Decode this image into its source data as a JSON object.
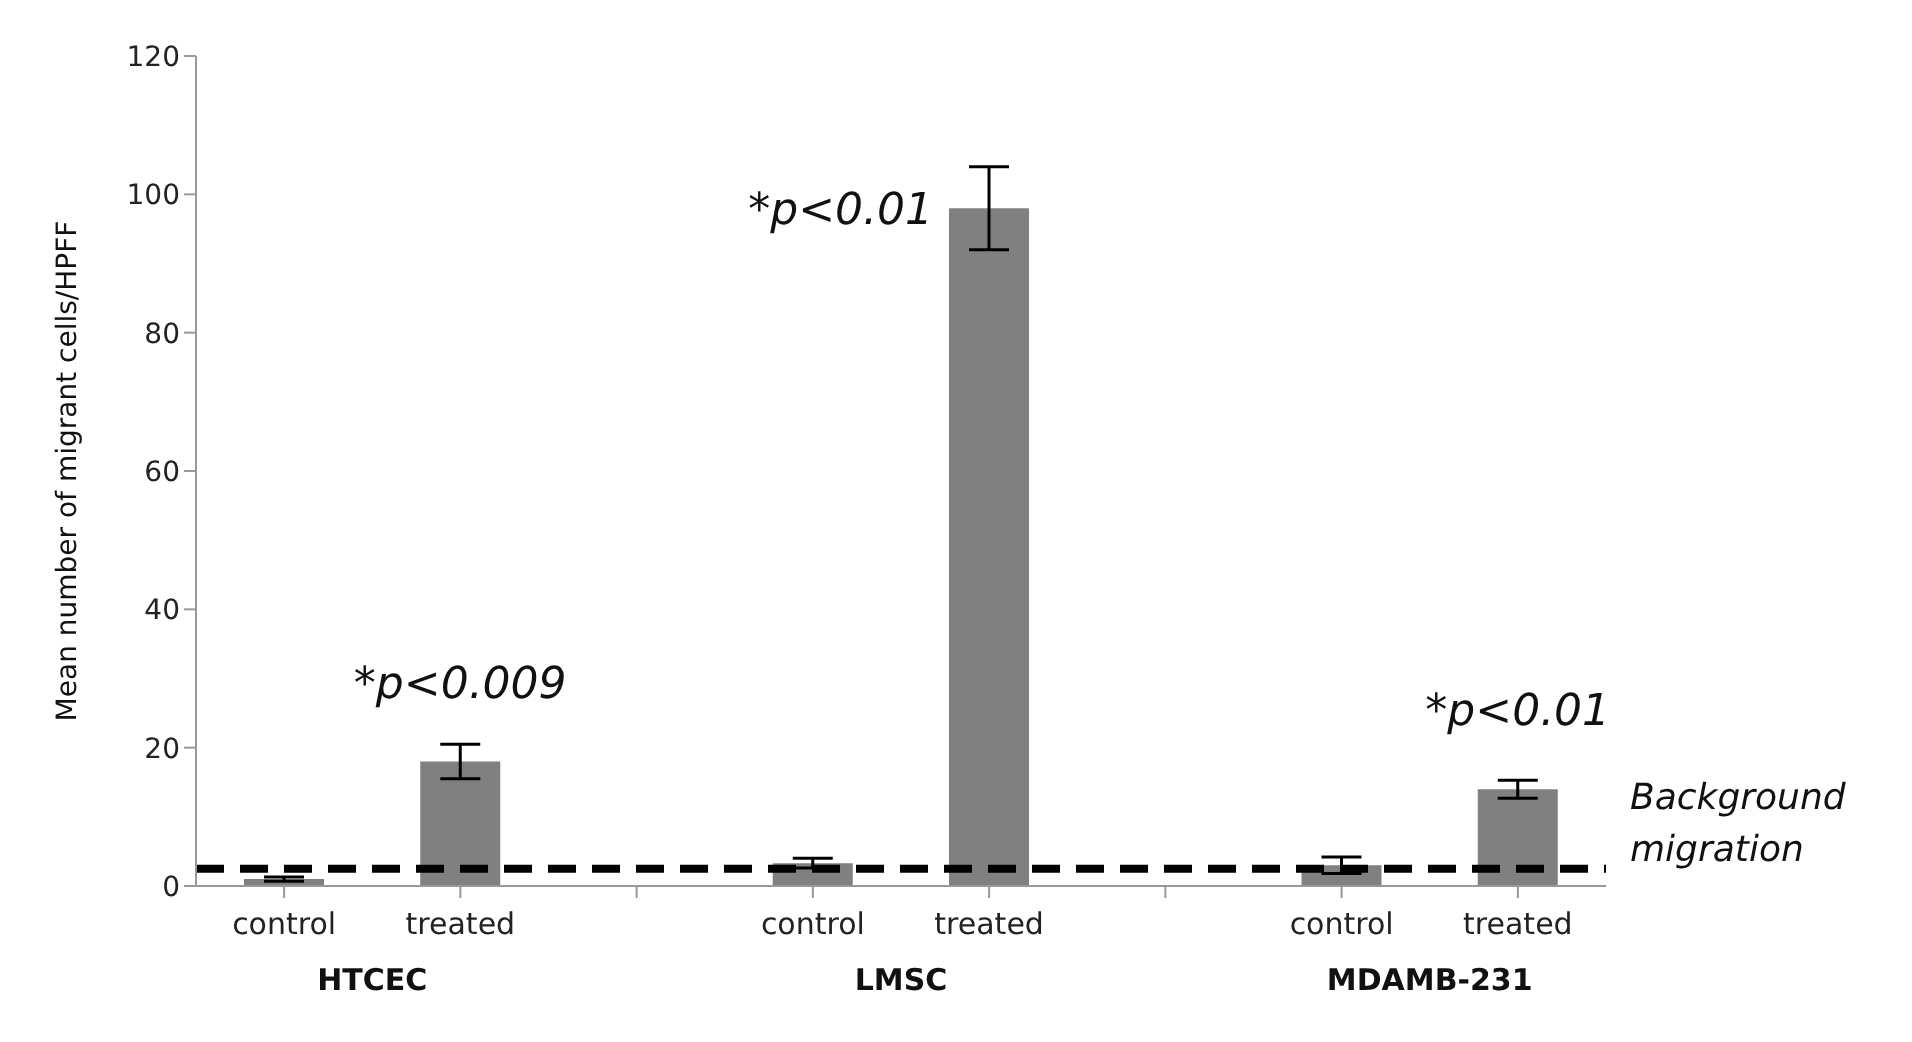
{
  "chart_data": {
    "type": "bar",
    "ylabel": "Mean number of migrant cells/HPFF",
    "categories": [
      "control",
      "treated",
      null,
      "control",
      "treated",
      null,
      "control",
      "treated"
    ],
    "values": [
      1,
      18,
      null,
      3.3,
      98,
      null,
      3,
      14
    ],
    "errors": [
      0.3,
      2.5,
      null,
      0.7,
      6,
      null,
      1.2,
      1.3
    ],
    "color": "#808080",
    "ylim": [
      0,
      120
    ],
    "yticks": [
      0,
      20,
      40,
      60,
      80,
      100,
      120
    ],
    "ref_lines": [
      {
        "axis": "y",
        "value": 2.5,
        "label": "Background migration",
        "color": "#000000",
        "line_style": "dashed"
      }
    ],
    "annotations": [
      "*p<0.009",
      "*p<0.01",
      "*p<0.01",
      "HTCEC",
      "LMSC",
      "MDAMB-231"
    ]
  }
}
